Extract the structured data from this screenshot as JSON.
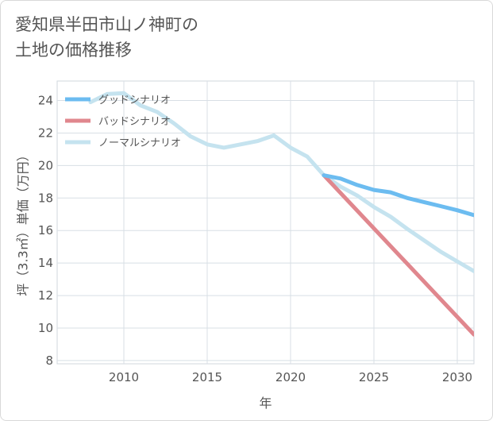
{
  "title_lines": [
    "愛知県半田市山ノ神町の",
    "土地の価格推移"
  ],
  "chart_data": {
    "type": "line",
    "title": "愛知県半田市山ノ神町の土地の価格推移",
    "xlabel": "年",
    "ylabel": "坪（3.3㎡）単価（万円）",
    "xlim": [
      2006,
      2031
    ],
    "ylim": [
      7.8,
      25.2
    ],
    "x_ticks": [
      2010,
      2015,
      2020,
      2025,
      2030
    ],
    "y_ticks": [
      8,
      10,
      12,
      14,
      16,
      18,
      20,
      22,
      24
    ],
    "grid": true,
    "legend_position": "top-left",
    "series": [
      {
        "name": "グッドシナリオ",
        "color": "#6cbcf0",
        "points": [
          [
            2022,
            19.4
          ],
          [
            2023,
            19.2
          ],
          [
            2024,
            18.8
          ],
          [
            2025,
            18.5
          ],
          [
            2026,
            18.35
          ],
          [
            2027,
            18.0
          ],
          [
            2028,
            17.75
          ],
          [
            2029,
            17.5
          ],
          [
            2030,
            17.25
          ],
          [
            2031,
            16.95
          ]
        ]
      },
      {
        "name": "バッドシナリオ",
        "color": "#e0878e",
        "points": [
          [
            2022,
            19.4
          ],
          [
            2031,
            9.6
          ]
        ]
      },
      {
        "name": "ノーマルシナリオ",
        "color": "#c5e3ef",
        "points": [
          [
            2008,
            23.9
          ],
          [
            2009,
            24.4
          ],
          [
            2010,
            24.45
          ],
          [
            2011,
            23.7
          ],
          [
            2012,
            23.3
          ],
          [
            2013,
            22.6
          ],
          [
            2014,
            21.8
          ],
          [
            2015,
            21.3
          ],
          [
            2016,
            21.1
          ],
          [
            2017,
            21.3
          ],
          [
            2018,
            21.5
          ],
          [
            2019,
            21.85
          ],
          [
            2020,
            21.1
          ],
          [
            2021,
            20.55
          ],
          [
            2022,
            19.4
          ],
          [
            2023,
            18.7
          ],
          [
            2024,
            18.15
          ],
          [
            2025,
            17.45
          ],
          [
            2026,
            16.85
          ],
          [
            2027,
            16.1
          ],
          [
            2028,
            15.4
          ],
          [
            2029,
            14.7
          ],
          [
            2030,
            14.1
          ],
          [
            2031,
            13.5
          ]
        ]
      }
    ]
  }
}
